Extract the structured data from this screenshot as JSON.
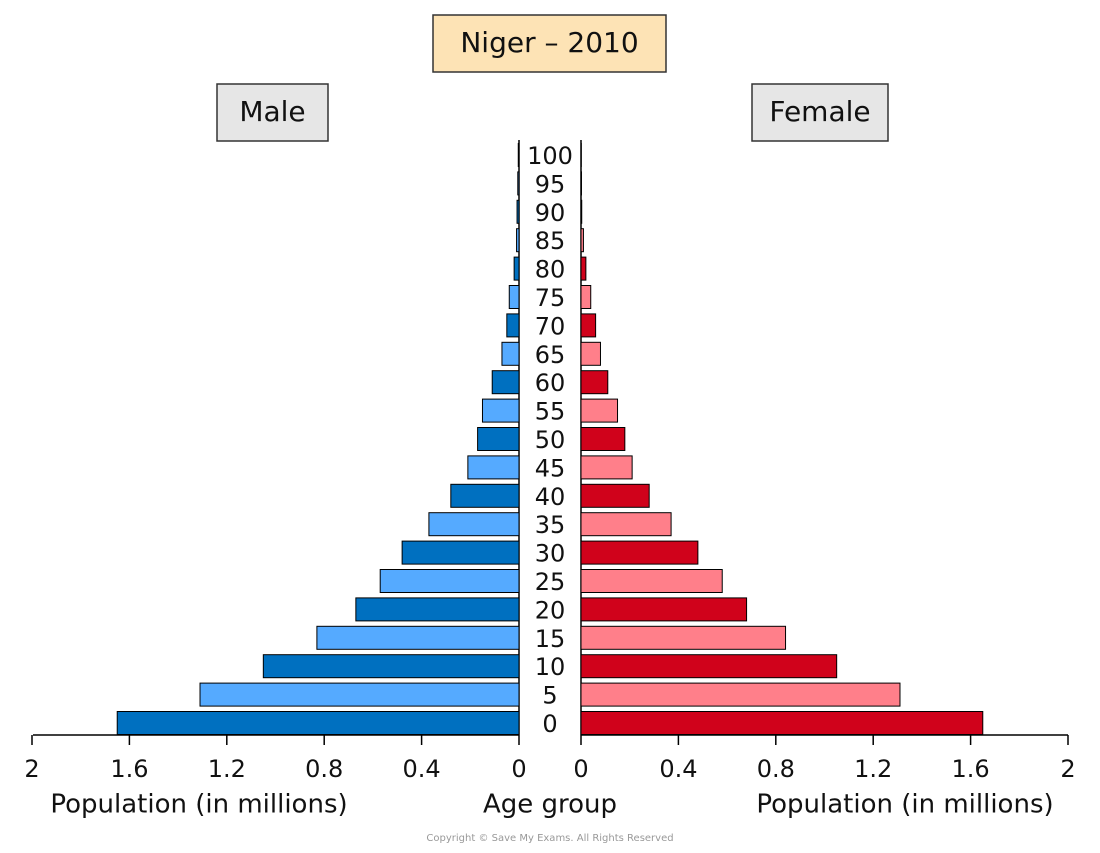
{
  "chart_data": {
    "type": "pyramid",
    "title": "Niger – 2010",
    "categories": [
      "0",
      "5",
      "10",
      "15",
      "20",
      "25",
      "30",
      "35",
      "40",
      "45",
      "50",
      "55",
      "60",
      "65",
      "70",
      "75",
      "80",
      "85",
      "90",
      "95",
      "100"
    ],
    "category_label": "Age group",
    "xlabel": "Population (in millions)",
    "xlim": [
      0,
      2
    ],
    "xticks": [
      0,
      0.4,
      0.8,
      1.2,
      1.6,
      2
    ],
    "series": [
      {
        "name": "Male",
        "colors": [
          "#0070c0",
          "#55aaff",
          "#0070c0",
          "#55aaff",
          "#0070c0",
          "#55aaff",
          "#0070c0",
          "#55aaff",
          "#0070c0",
          "#55aaff",
          "#0070c0",
          "#55aaff",
          "#0070c0",
          "#55aaff",
          "#0070c0",
          "#55aaff",
          "#0070c0",
          "#55aaff",
          "#0070c0",
          "#55aaff",
          "#0070c0"
        ],
        "values": [
          1.65,
          1.31,
          1.05,
          0.83,
          0.67,
          0.57,
          0.48,
          0.37,
          0.28,
          0.21,
          0.17,
          0.15,
          0.11,
          0.07,
          0.05,
          0.04,
          0.02,
          0.01,
          0.008,
          0.005,
          0.003
        ]
      },
      {
        "name": "Female",
        "colors": [
          "#d0021b",
          "#ff7f8a",
          "#d0021b",
          "#ff7f8a",
          "#d0021b",
          "#ff7f8a",
          "#d0021b",
          "#ff7f8a",
          "#d0021b",
          "#ff7f8a",
          "#d0021b",
          "#ff7f8a",
          "#d0021b",
          "#ff7f8a",
          "#d0021b",
          "#ff7f8a",
          "#d0021b",
          "#ff7f8a",
          "#d0021b",
          "#ff7f8a",
          "#d0021b"
        ],
        "values": [
          1.65,
          1.31,
          1.05,
          0.84,
          0.68,
          0.58,
          0.48,
          0.37,
          0.28,
          0.21,
          0.18,
          0.15,
          0.11,
          0.08,
          0.06,
          0.04,
          0.02,
          0.01,
          0.003,
          0.002,
          0.001
        ]
      }
    ],
    "footer": "Copyright © Save My Exams. All Rights Reserved"
  }
}
